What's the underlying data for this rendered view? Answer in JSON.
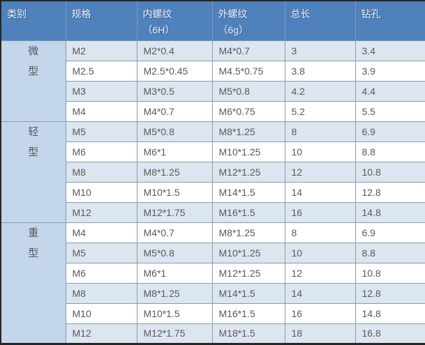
{
  "table": {
    "columns": [
      {
        "label": "类别",
        "sub": ""
      },
      {
        "label": "规格",
        "sub": ""
      },
      {
        "label": "内螺纹",
        "sub": "（6H）"
      },
      {
        "label": "外螺纹",
        "sub": "（6g）"
      },
      {
        "label": "总长",
        "sub": ""
      },
      {
        "label": "钻孔",
        "sub": ""
      }
    ],
    "groups": [
      {
        "category": "微型",
        "rows": [
          [
            "M2",
            "M2*0.4",
            "M4*0.7",
            "3",
            "3.4"
          ],
          [
            "M2.5",
            "M2.5*0.45",
            "M4.5*0.75",
            "3.8",
            "3.9"
          ],
          [
            "M3",
            "M3*0.5",
            "M5*0.8",
            "4.2",
            "4.4"
          ],
          [
            "M4",
            "M4*0.7",
            "M6*0.75",
            "5.2",
            "5.5"
          ]
        ]
      },
      {
        "category": "轻型",
        "rows": [
          [
            "M5",
            "M5*0.8",
            "M8*1.25",
            "8",
            "6.9"
          ],
          [
            "M6",
            "M6*1",
            "M10*1.25",
            "10",
            "8.8"
          ],
          [
            "M8",
            "M8*1.25",
            "M12*1.25",
            "12",
            "10.8"
          ],
          [
            "M10",
            "M10*1.5",
            "M14*1.5",
            "14",
            "12.8"
          ],
          [
            "M12",
            "M12*1.75",
            "M16*1.5",
            "16",
            "14.8"
          ]
        ]
      },
      {
        "category": "重型",
        "rows": [
          [
            "M4",
            "M4*0.7",
            "M8*1.25",
            "8",
            "6.9"
          ],
          [
            "M5",
            "M5*0.8",
            "M10*1.25",
            "10",
            "8.8"
          ],
          [
            "M6",
            "M6*1",
            "M12*1.25",
            "12",
            "10.8"
          ],
          [
            "M8",
            "M8*1.25",
            "M14*1.5",
            "14",
            "12.8"
          ],
          [
            "M10",
            "M10*1.5",
            "M16*1.5",
            "16",
            "14.8"
          ],
          [
            "M12",
            "M12*1.75",
            "M18*1.5",
            "18",
            "16.8"
          ]
        ]
      }
    ],
    "colors": {
      "header_bg": "#4f81bd",
      "header_text": "#eef2f8",
      "category_bg": "#c3d6ec",
      "row_alt_bg": "#dce6f1",
      "row_bg": "#ffffff",
      "body_text": "#595959",
      "outer_border": "#262626",
      "grid": "#8c99a9"
    }
  }
}
